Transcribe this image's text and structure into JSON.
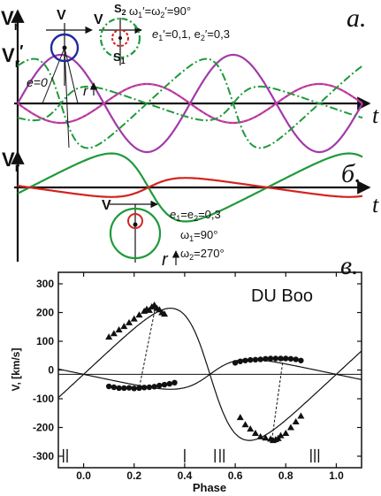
{
  "colors": {
    "purple": "#a23aa8",
    "green": "#1f9a3a",
    "red": "#d2231e",
    "blue": "#1f2aa0",
    "black": "#111111",
    "pink": "#ee3a8c"
  },
  "panel_a": {
    "label": "а.",
    "axis_t": "t",
    "vr": "V",
    "vr_sub": "r",
    "vr2": "V",
    "vr2_sub": "r",
    "vr2_sup": "′",
    "v_small": "V",
    "v_small2": "V",
    "s2": "S",
    "s2_sub": "2",
    "s1": "S",
    "s1_sub": "1",
    "omega": "ω",
    "omega_text": "′=ω",
    "omega_text2": "′=90°",
    "ecc": "e",
    "ecc_text": "′=0,1, e",
    "ecc_text2": "′=0,3",
    "e0": "e=0",
    "r": "r"
  },
  "panel_b": {
    "label": "б.",
    "axis_t": "t",
    "vr": "V",
    "vr_sub": "r",
    "v_small": "V",
    "ecc": "e",
    "ecc_text": "=e",
    "ecc_text2": "=0,3",
    "omega1": "ω",
    "omega1_text": "=90°",
    "omega2": "ω",
    "omega2_text": "=270°",
    "r": "r"
  },
  "panel_c": {
    "label": "в."
  },
  "chart_data": {
    "type": "scatter",
    "title": "DU Boo",
    "xlabel": "Phase",
    "ylabel": "V, [km/s]",
    "xlim": [
      -0.1,
      1.1
    ],
    "ylim": [
      -340,
      340
    ],
    "xticks": [
      "0.0",
      "0.2",
      "0.4",
      "0.6",
      "0.8",
      "1.0"
    ],
    "yticks": [
      "-300",
      "-200",
      "-100",
      "0",
      "100",
      "200",
      "300"
    ],
    "gamma": -15,
    "series": [
      {
        "marker": "triangle",
        "points": [
          [
            0.1,
            115
          ],
          [
            0.12,
            127
          ],
          [
            0.14,
            140
          ],
          [
            0.16,
            152
          ],
          [
            0.18,
            165
          ],
          [
            0.2,
            178
          ],
          [
            0.22,
            192
          ],
          [
            0.24,
            205
          ],
          [
            0.25,
            212
          ],
          [
            0.26,
            208
          ],
          [
            0.27,
            220
          ],
          [
            0.28,
            226
          ],
          [
            0.29,
            215
          ],
          [
            0.3,
            210
          ],
          [
            0.31,
            200
          ],
          [
            0.32,
            195
          ],
          [
            0.62,
            -165
          ],
          [
            0.64,
            -190
          ],
          [
            0.66,
            -205
          ],
          [
            0.68,
            -220
          ],
          [
            0.7,
            -232
          ],
          [
            0.72,
            -236
          ],
          [
            0.74,
            -240
          ],
          [
            0.75,
            -245
          ],
          [
            0.76,
            -242
          ],
          [
            0.77,
            -238
          ],
          [
            0.78,
            -228
          ],
          [
            0.8,
            -220
          ],
          [
            0.82,
            -200
          ],
          [
            0.84,
            -180
          ],
          [
            0.86,
            -160
          ]
        ]
      },
      {
        "marker": "circle",
        "points": [
          [
            0.1,
            -57
          ],
          [
            0.12,
            -60
          ],
          [
            0.14,
            -63
          ],
          [
            0.16,
            -63
          ],
          [
            0.18,
            -62
          ],
          [
            0.2,
            -64
          ],
          [
            0.22,
            -63
          ],
          [
            0.24,
            -61
          ],
          [
            0.26,
            -60
          ],
          [
            0.28,
            -58
          ],
          [
            0.3,
            -54
          ],
          [
            0.32,
            -51
          ],
          [
            0.34,
            -48
          ],
          [
            0.36,
            -44
          ],
          [
            0.6,
            25
          ],
          [
            0.62,
            30
          ],
          [
            0.64,
            33
          ],
          [
            0.66,
            35
          ],
          [
            0.68,
            36
          ],
          [
            0.7,
            37
          ],
          [
            0.72,
            39
          ],
          [
            0.74,
            40
          ],
          [
            0.76,
            40
          ],
          [
            0.78,
            40
          ],
          [
            0.8,
            40
          ],
          [
            0.82,
            39
          ],
          [
            0.84,
            37
          ],
          [
            0.86,
            33
          ]
        ]
      }
    ],
    "model_curves": [
      {
        "K": 230,
        "e": 0.3,
        "omega": 90,
        "T0": 0.5
      },
      {
        "K": 52,
        "e": 0.3,
        "omega": 270,
        "T0": 0.5
      }
    ],
    "dashed_connectors": [
      [
        0.285,
        222,
        0.22,
        -63
      ],
      [
        0.745,
        -243,
        0.79,
        40
      ]
    ],
    "eclipse_marks": [
      -0.08,
      -0.065,
      0.4,
      0.52,
      0.54,
      0.555,
      0.9,
      0.915,
      0.93
    ]
  }
}
